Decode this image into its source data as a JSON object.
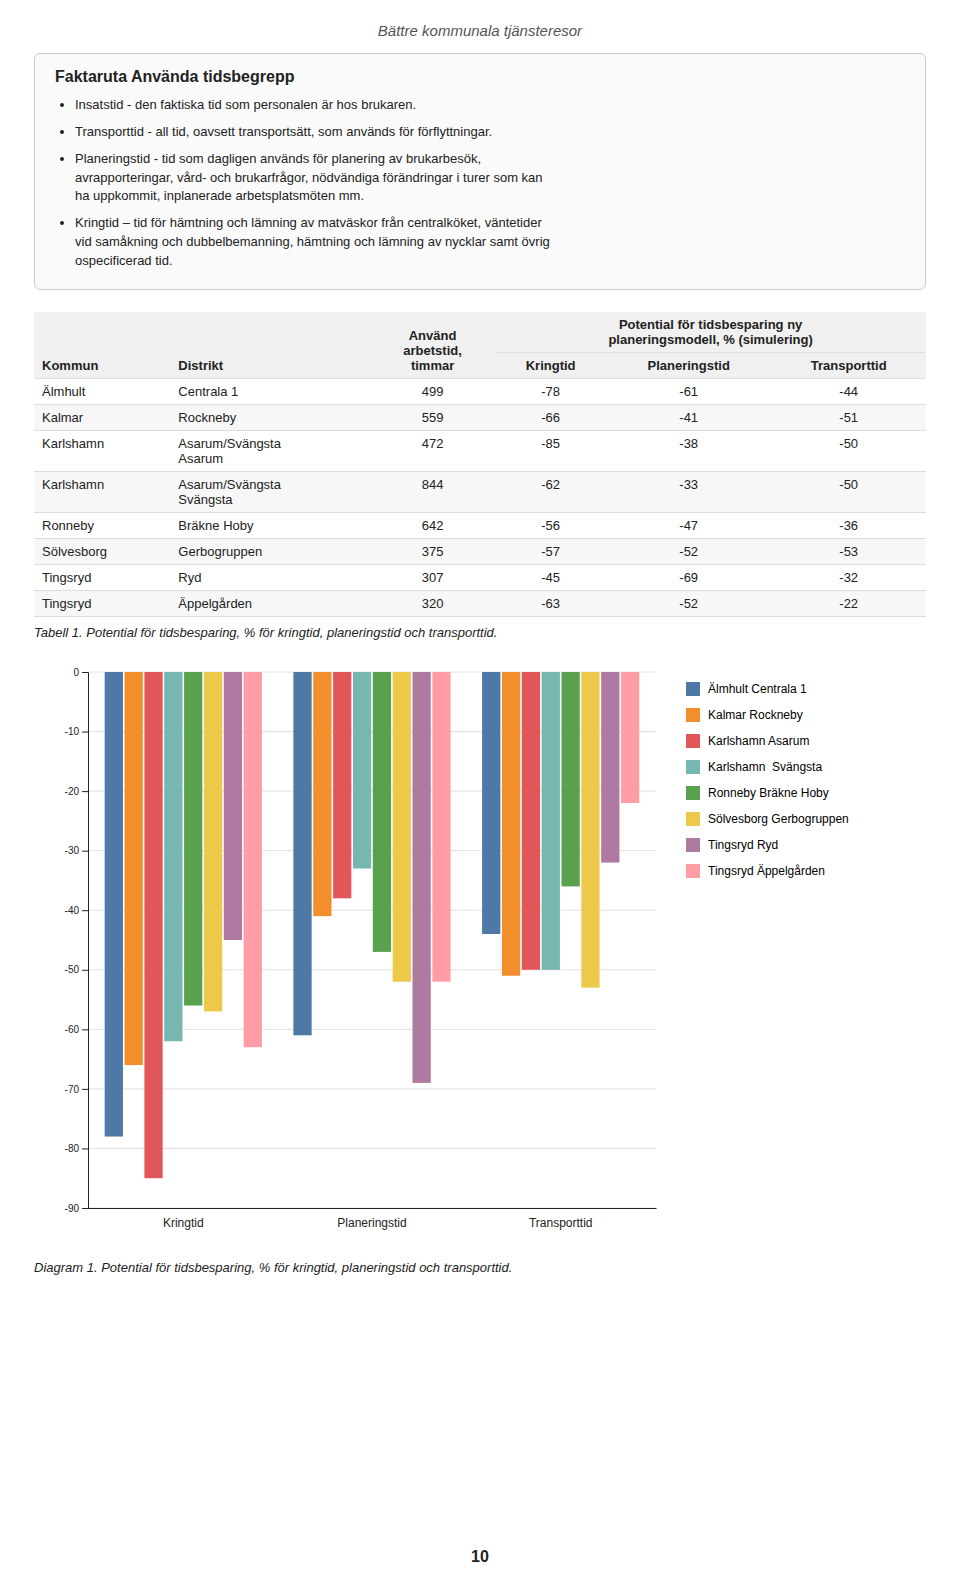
{
  "page_title": "Bättre kommunala tjänsteresor",
  "factbox": {
    "title": "Faktaruta Använda tidsbegrepp",
    "bullets": [
      "Insatstid - den faktiska tid som personalen är hos brukaren.",
      "Transporttid - all tid, oavsett transportsätt, som används för förflyttningar.",
      "Planeringstid - tid som dagligen används för planering av brukarbesök,\navrapporteringar, vård- och brukarfrågor, nödvändiga förändringar i turer som kan\nha uppkommit, inplanerade arbetsplatsmöten mm.",
      "Kringtid – tid för hämtning och lämning av matväskor från centralköket, väntetider\nvid samåkning och dubbelbemanning, hämtning och lämning av nycklar samt övrig\nospecificerad tid."
    ]
  },
  "table": {
    "columns": [
      "Kommun",
      "Distrikt",
      "Använd\narbetstid,\ntimmar"
    ],
    "group_header": "Potential för tidsbesparing ny\nplaneringsmodell, % (simulering)",
    "subcolumns": [
      "Kringtid",
      "Planeringstid",
      "Transporttid"
    ],
    "rows": [
      [
        "Älmhult",
        "Centrala 1",
        "499",
        "-78",
        "-61",
        "-44"
      ],
      [
        "Kalmar",
        "Rockneby",
        "559",
        "-66",
        "-41",
        "-51"
      ],
      [
        "Karlshamn",
        "Asarum/Svängsta\nAsarum",
        "472",
        "-85",
        "-38",
        "-50"
      ],
      [
        "Karlshamn",
        "Asarum/Svängsta\nSvängsta",
        "844",
        "-62",
        "-33",
        "-50"
      ],
      [
        "Ronneby",
        "Bräkne Hoby",
        "642",
        "-56",
        "-47",
        "-36"
      ],
      [
        "Sölvesborg",
        "Gerbogruppen",
        "375",
        "-57",
        "-52",
        "-53"
      ],
      [
        "Tingsryd",
        "Ryd",
        "307",
        "-45",
        "-69",
        "-32"
      ],
      [
        "Tingsryd",
        "Äppelgården",
        "320",
        "-63",
        "-52",
        "-22"
      ]
    ],
    "caption": "Tabell 1. Potential för tidsbesparing, % för kringtid, planeringstid och transporttid."
  },
  "chart_data": {
    "type": "bar",
    "categories": [
      "Kringtid",
      "Planeringstid",
      "Transporttid"
    ],
    "series": [
      {
        "name": "Älmhult Centrala 1",
        "values": [
          -78,
          -61,
          -44
        ]
      },
      {
        "name": "Kalmar Rockneby",
        "values": [
          -66,
          -41,
          -51
        ]
      },
      {
        "name": "Karlshamn Asarum",
        "values": [
          -85,
          -38,
          -50
        ]
      },
      {
        "name": "Karlshamn  Svängsta",
        "values": [
          -62,
          -33,
          -50
        ]
      },
      {
        "name": "Ronneby Bräkne Hoby",
        "values": [
          -56,
          -47,
          -36
        ]
      },
      {
        "name": "Sölvesborg Gerbogruppen",
        "values": [
          -57,
          -52,
          -53
        ]
      },
      {
        "name": "Tingsryd Ryd",
        "values": [
          -45,
          -69,
          -32
        ]
      },
      {
        "name": "Tingsryd Äppelgården",
        "values": [
          -63,
          -52,
          -22
        ]
      }
    ],
    "ylim": [
      -90,
      0
    ],
    "yticks": [
      0,
      -10,
      -20,
      -30,
      -40,
      -50,
      -60,
      -70,
      -80,
      -90
    ],
    "grid": true,
    "legend": "right"
  },
  "chart_caption": "Diagram 1. Potential för tidsbesparing, % för kringtid, planeringstid och transporttid.",
  "page_number": "10"
}
